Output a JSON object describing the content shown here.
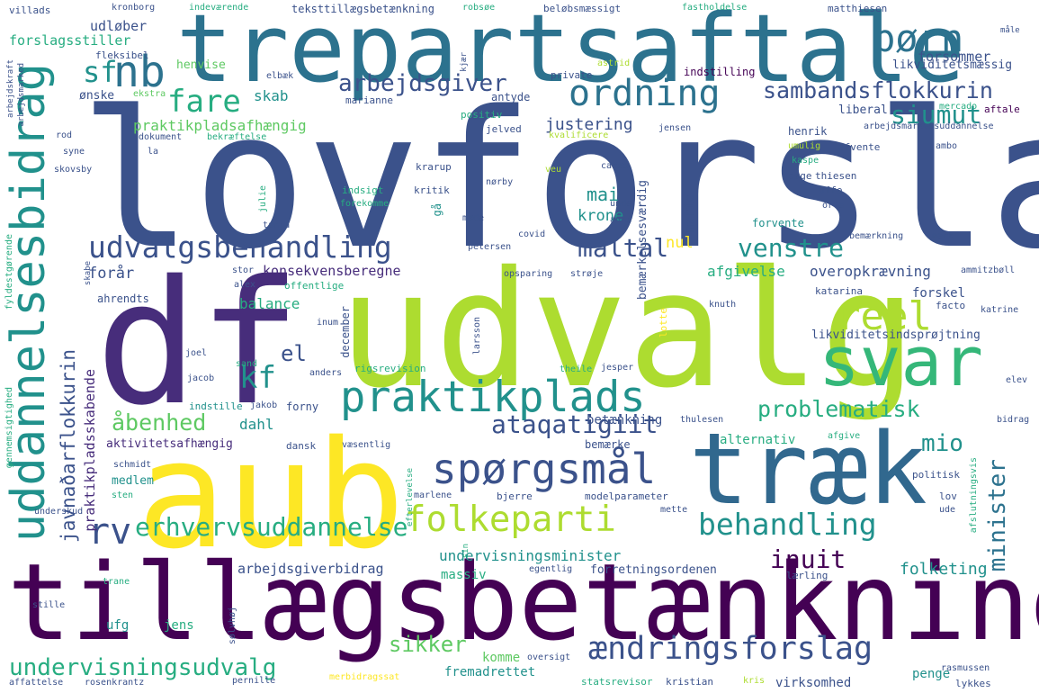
{
  "palette": {
    "navy": "#3b528b",
    "purple": "#472d7b",
    "deep": "#440154",
    "teal": "#21918c",
    "blue_teal": "#2c728e",
    "green": "#27ad81",
    "light_green": "#5ec962",
    "lime": "#addc30",
    "yellow": "#fde725"
  },
  "words": [
    {
      "id": "lovforslag",
      "text": "lovforslag",
      "color": "#3b528b"
    },
    {
      "id": "trepartsaftale",
      "text": "trepartsaftale",
      "color": "#2c728e"
    },
    {
      "id": "df",
      "text": "df",
      "color": "#472d7b"
    },
    {
      "id": "udvalg",
      "text": "udvalg",
      "color": "#addc30"
    },
    {
      "id": "aub",
      "text": "aub",
      "color": "#fde725"
    },
    {
      "id": "traek",
      "text": "træk",
      "color": "#31688e"
    },
    {
      "id": "tillaegsbetaenkning",
      "text": "tillægsbetænkning",
      "color": "#440154"
    },
    {
      "id": "svar",
      "text": "svar",
      "color": "#35b779"
    },
    {
      "id": "praktikplads",
      "text": "praktikplads",
      "color": "#21918c"
    },
    {
      "id": "uddannelsesbidrag",
      "text": "uddannelsesbidrag",
      "color": "#21918c"
    },
    {
      "id": "udvalgsbehandling",
      "text": "udvalgsbehandling",
      "color": "#3b528b"
    },
    {
      "id": "spoergsmaal",
      "text": "spørgsmål",
      "color": "#3b528b"
    },
    {
      "id": "folkeparti",
      "text": "folkeparti",
      "color": "#addc30"
    },
    {
      "id": "behandling",
      "text": "behandling",
      "color": "#21918c"
    },
    {
      "id": "aendringsforslag",
      "text": "ændringsforslag",
      "color": "#3b528b"
    },
    {
      "id": "undervisningsudvalg",
      "text": "undervisningsudvalg",
      "color": "#27ad81"
    },
    {
      "id": "ordning",
      "text": "ordning",
      "color": "#2c728e"
    },
    {
      "id": "boern",
      "text": "børn",
      "color": "#2c728e"
    },
    {
      "id": "nb",
      "text": "nb",
      "color": "#2c728e"
    },
    {
      "id": "sf",
      "text": "sf",
      "color": "#21918c"
    },
    {
      "id": "fare",
      "text": "fare",
      "color": "#27ad81"
    },
    {
      "id": "arbejdsgiver",
      "text": "arbejdsgiver",
      "color": "#3b528b"
    },
    {
      "id": "sambandsflokkurin",
      "text": "sambandsflokkurin",
      "color": "#3b528b"
    },
    {
      "id": "siumut",
      "text": "siumut",
      "color": "#21918c"
    },
    {
      "id": "reel",
      "text": "reel",
      "color": "#addc30"
    },
    {
      "id": "venstre",
      "text": "venstre",
      "color": "#21918c"
    },
    {
      "id": "maaltal",
      "text": "måltal",
      "color": "#3b528b"
    },
    {
      "id": "kf",
      "text": "kf",
      "color": "#21918c"
    },
    {
      "id": "el",
      "text": "el",
      "color": "#3b528b"
    },
    {
      "id": "rv",
      "text": "rv",
      "color": "#3b528b"
    },
    {
      "id": "erhvervsuddannelse",
      "text": "erhvervsuddannelse",
      "color": "#27ad81"
    },
    {
      "id": "mio",
      "text": "mio",
      "color": "#21918c"
    },
    {
      "id": "problematisk",
      "text": "problematisk",
      "color": "#27ad81"
    },
    {
      "id": "ataqatigiit",
      "text": "ataqatigiit",
      "color": "#3b528b"
    },
    {
      "id": "aabenhed",
      "text": "åbenhed",
      "color": "#5ec962"
    },
    {
      "id": "sikker",
      "text": "sikker",
      "color": "#5ec962"
    },
    {
      "id": "inuit",
      "text": "inuit",
      "color": "#440154"
    },
    {
      "id": "minister",
      "text": "minister",
      "color": "#2c728e"
    },
    {
      "id": "folketing",
      "text": "folketing",
      "color": "#21918c"
    },
    {
      "id": "praktikpladsafhaengig",
      "text": "praktikpladsafhængig",
      "color": "#5ec962"
    },
    {
      "id": "justering",
      "text": "justering",
      "color": "#3b528b"
    },
    {
      "id": "mai",
      "text": "mai",
      "color": "#21918c"
    },
    {
      "id": "krone",
      "text": "krone",
      "color": "#21918c"
    },
    {
      "id": "nul",
      "text": "nul",
      "color": "#fde725"
    },
    {
      "id": "skab",
      "text": "skab",
      "color": "#21918c"
    },
    {
      "id": "forsommer",
      "text": "forsommer",
      "color": "#3b528b"
    },
    {
      "id": "javnadarflokkurin",
      "text": "javnaðarflokkurin",
      "color": "#3b528b"
    },
    {
      "id": "praktikpladsskabende",
      "text": "praktikpladsskabende",
      "color": "#472d7b"
    },
    {
      "id": "konsekvensberegne",
      "text": "konsekvensberegne",
      "color": "#472d7b"
    },
    {
      "id": "overopkraevning",
      "text": "overopkrævning",
      "color": "#3b528b"
    },
    {
      "id": "afgivelse",
      "text": "afgivelse",
      "color": "#27ad81"
    },
    {
      "id": "forskel",
      "text": "forskel",
      "color": "#3b528b"
    },
    {
      "id": "likviditetsindsproejtning",
      "text": "likviditetsindsprøjtning",
      "color": "#3b528b"
    },
    {
      "id": "balance",
      "text": "balance",
      "color": "#27ad81"
    },
    {
      "id": "foraar",
      "text": "forår",
      "color": "#3b528b"
    },
    {
      "id": "dahl",
      "text": "dahl",
      "color": "#21918c"
    },
    {
      "id": "betaenkning",
      "text": "betænkning",
      "color": "#3b528b"
    },
    {
      "id": "alternativ",
      "text": "alternativ",
      "color": "#27ad81"
    },
    {
      "id": "aktivitetsafhaengig",
      "text": "aktivitetsafhængig",
      "color": "#472d7b"
    },
    {
      "id": "arbejdsgiverbidrag",
      "text": "arbejdsgiverbidrag",
      "color": "#3b528b"
    },
    {
      "id": "undervisningsminister",
      "text": "undervisningsminister",
      "color": "#21918c"
    },
    {
      "id": "massiv",
      "text": "massiv",
      "color": "#27ad81"
    },
    {
      "id": "forretningsordenen",
      "text": "forretningsordenen",
      "color": "#3b528b"
    },
    {
      "id": "fremadrettet",
      "text": "fremadrettet",
      "color": "#21918c"
    },
    {
      "id": "komme",
      "text": "komme",
      "color": "#5ec962"
    },
    {
      "id": "penge",
      "text": "penge",
      "color": "#21918c"
    },
    {
      "id": "virksomhed",
      "text": "virksomhed",
      "color": "#3b528b"
    },
    {
      "id": "medlem",
      "text": "medlem",
      "color": "#21918c"
    },
    {
      "id": "ufg",
      "text": "ufg",
      "color": "#21918c"
    },
    {
      "id": "jens",
      "text": "jens",
      "color": "#27ad81"
    },
    {
      "id": "udloeber",
      "text": "udløber",
      "color": "#3b528b"
    },
    {
      "id": "forslagsstiller",
      "text": "forslagsstiller",
      "color": "#27ad81"
    },
    {
      "id": "fleksibel",
      "text": "fleksibel",
      "color": "#3b528b"
    },
    {
      "id": "henvise",
      "text": "henvise",
      "color": "#5ec962"
    },
    {
      "id": "oenske",
      "text": "ønske",
      "color": "#3b528b"
    },
    {
      "id": "ekstra",
      "text": "ekstra",
      "color": "#5ec962"
    },
    {
      "id": "marianne",
      "text": "marianne",
      "color": "#3b528b"
    },
    {
      "id": "antyde",
      "text": "antyde",
      "color": "#3b528b"
    },
    {
      "id": "positiv",
      "text": "positiv",
      "color": "#27ad81"
    },
    {
      "id": "jelved",
      "text": "jelved",
      "color": "#3b528b"
    },
    {
      "id": "kvalificere",
      "text": "kvalificere",
      "color": "#addc30"
    },
    {
      "id": "liberal",
      "text": "liberal",
      "color": "#3b528b"
    },
    {
      "id": "arbejdsmarkedsuddannelse",
      "text": "arbejdsmarkedsuddannelse",
      "color": "#3b528b"
    },
    {
      "id": "aftale",
      "text": "aftale",
      "color": "#440154"
    },
    {
      "id": "mercado",
      "text": "mercado",
      "color": "#27ad81"
    },
    {
      "id": "likviditetsmaessig",
      "text": "likviditetsmæssig",
      "color": "#3b528b"
    },
    {
      "id": "indstilling",
      "text": "indstilling",
      "color": "#440154"
    },
    {
      "id": "private",
      "text": "private",
      "color": "#3b528b"
    },
    {
      "id": "astrid",
      "text": "astrid",
      "color": "#addc30"
    },
    {
      "id": "villads",
      "text": "villads",
      "color": "#3b528b"
    },
    {
      "id": "kronborg",
      "text": "kronborg",
      "color": "#3b528b"
    },
    {
      "id": "indevaerende",
      "text": "indeværende",
      "color": "#27ad81"
    },
    {
      "id": "teksttillaegsbetaenkning",
      "text": "teksttillægsbetænkning",
      "color": "#3b528b"
    },
    {
      "id": "robsoee",
      "text": "robsøe",
      "color": "#27ad81"
    },
    {
      "id": "beloebsmaessigt",
      "text": "beløbsmæssigt",
      "color": "#3b528b"
    },
    {
      "id": "fastholdelse",
      "text": "fastholdelse",
      "color": "#27ad81"
    },
    {
      "id": "matthiesen",
      "text": "matthiesen",
      "color": "#3b528b"
    },
    {
      "id": "maale",
      "text": "måle",
      "color": "#3b528b"
    },
    {
      "id": "elbaek",
      "text": "elbæk",
      "color": "#3b528b"
    },
    {
      "id": "rod",
      "text": "rod",
      "color": "#3b528b"
    },
    {
      "id": "syne",
      "text": "syne",
      "color": "#3b528b"
    },
    {
      "id": "skovsby",
      "text": "skovsby",
      "color": "#3b528b"
    },
    {
      "id": "dokument",
      "text": "dokument",
      "color": "#3b528b"
    },
    {
      "id": "bekraeftelse",
      "text": "bekræftelse",
      "color": "#27ad81"
    },
    {
      "id": "la",
      "text": "la",
      "color": "#3b528b"
    },
    {
      "id": "henrik",
      "text": "henrik",
      "color": "#3b528b"
    },
    {
      "id": "umulig",
      "text": "umulig",
      "color": "#addc30"
    },
    {
      "id": "kaspe",
      "text": "kaspe",
      "color": "#27ad81"
    },
    {
      "id": "afvente",
      "text": "afvente",
      "color": "#3b528b"
    },
    {
      "id": "ambo",
      "text": "ambo",
      "color": "#3b528b"
    },
    {
      "id": "jensen",
      "text": "jensen",
      "color": "#3b528b"
    },
    {
      "id": "kjaer",
      "text": "kjær",
      "color": "#3b528b"
    },
    {
      "id": "krarup",
      "text": "krarup",
      "color": "#3b528b"
    },
    {
      "id": "veu",
      "text": "veu",
      "color": "#addc30"
    },
    {
      "id": "caroee",
      "text": "carøe",
      "color": "#3b528b"
    },
    {
      "id": "soege",
      "text": "søge",
      "color": "#3b528b"
    },
    {
      "id": "thiesen",
      "text": "thiesen",
      "color": "#3b528b"
    },
    {
      "id": "uffe",
      "text": "uffe",
      "color": "#3b528b"
    },
    {
      "id": "orla",
      "text": "orla",
      "color": "#3b528b"
    },
    {
      "id": "noerby",
      "text": "nørby",
      "color": "#3b528b"
    },
    {
      "id": "unde",
      "text": "unde",
      "color": "#3b528b"
    },
    {
      "id": "kritik",
      "text": "kritik",
      "color": "#3b528b"
    },
    {
      "id": "indsigt",
      "text": "indsigt",
      "color": "#27ad81"
    },
    {
      "id": "forekomme",
      "text": "forekomme",
      "color": "#27ad81"
    },
    {
      "id": "moede",
      "text": "møde",
      "color": "#3b528b"
    },
    {
      "id": "anni",
      "text": "anni",
      "color": "#3b528b"
    },
    {
      "id": "julie",
      "text": "julie",
      "color": "#27ad81"
    },
    {
      "id": "tanja",
      "text": "tanja",
      "color": "#3b528b"
    },
    {
      "id": "gaa",
      "text": "gå",
      "color": "#21918c"
    },
    {
      "id": "petersen",
      "text": "petersen",
      "color": "#3b528b"
    },
    {
      "id": "covid",
      "text": "covid",
      "color": "#3b528b"
    },
    {
      "id": "forvente",
      "text": "forvente",
      "color": "#21918c"
    },
    {
      "id": "bemaerkning",
      "text": "bemærkning",
      "color": "#3b528b"
    },
    {
      "id": "mark",
      "text": "mark",
      "color": "#3b528b"
    },
    {
      "id": "stor",
      "text": "stor",
      "color": "#3b528b"
    },
    {
      "id": "alex",
      "text": "alex",
      "color": "#3b528b"
    },
    {
      "id": "offentlige",
      "text": "offentlige",
      "color": "#27ad81"
    },
    {
      "id": "opsparing",
      "text": "opsparing",
      "color": "#3b528b"
    },
    {
      "id": "stroeje",
      "text": "strøje",
      "color": "#3b528b"
    },
    {
      "id": "bemaerkelsesvaerdig",
      "text": "bemærkelsesværdig",
      "color": "#3b528b"
    },
    {
      "id": "marie",
      "text": "marie",
      "color": "#3b528b"
    },
    {
      "id": "katarina",
      "text": "katarina",
      "color": "#3b528b"
    },
    {
      "id": "ammitzboell",
      "text": "ammitzbøll",
      "color": "#3b528b"
    },
    {
      "id": "knuth",
      "text": "knuth",
      "color": "#3b528b"
    },
    {
      "id": "facto",
      "text": "facto",
      "color": "#3b528b"
    },
    {
      "id": "katrine",
      "text": "katrine",
      "color": "#3b528b"
    },
    {
      "id": "ahrendts",
      "text": "ahrendts",
      "color": "#3b528b"
    },
    {
      "id": "inum",
      "text": "inum",
      "color": "#3b528b"
    },
    {
      "id": "december",
      "text": "december",
      "color": "#3b528b"
    },
    {
      "id": "larsson",
      "text": "larsson",
      "color": "#3b528b"
    },
    {
      "id": "lotte",
      "text": "lotte",
      "color": "#fde725"
    },
    {
      "id": "joel",
      "text": "joel",
      "color": "#3b528b"
    },
    {
      "id": "sand",
      "text": "sand",
      "color": "#27ad81"
    },
    {
      "id": "jacob",
      "text": "jacob",
      "color": "#3b528b"
    },
    {
      "id": "anders",
      "text": "anders",
      "color": "#3b528b"
    },
    {
      "id": "rigsrevision",
      "text": "rigsrevision",
      "color": "#27ad81"
    },
    {
      "id": "theile",
      "text": "theile",
      "color": "#27ad81"
    },
    {
      "id": "jesper",
      "text": "jesper",
      "color": "#3b528b"
    },
    {
      "id": "elev",
      "text": "elev",
      "color": "#3b528b"
    },
    {
      "id": "indstille",
      "text": "indstille",
      "color": "#21918c"
    },
    {
      "id": "jakob",
      "text": "jakob",
      "color": "#3b528b"
    },
    {
      "id": "forny",
      "text": "forny",
      "color": "#3b528b"
    },
    {
      "id": "thulesen",
      "text": "thulesen",
      "color": "#3b528b"
    },
    {
      "id": "bidrag",
      "text": "bidrag",
      "color": "#3b528b"
    },
    {
      "id": "dansk",
      "text": "dansk",
      "color": "#3b528b"
    },
    {
      "id": "vaesentlig",
      "text": "væsentlig",
      "color": "#3b528b"
    },
    {
      "id": "bemaerke",
      "text": "bemærke",
      "color": "#3b528b"
    },
    {
      "id": "afgive",
      "text": "afgive",
      "color": "#27ad81"
    },
    {
      "id": "schmidt",
      "text": "schmidt",
      "color": "#3b528b"
    },
    {
      "id": "politisk",
      "text": "politisk",
      "color": "#3b528b"
    },
    {
      "id": "sten",
      "text": "sten",
      "color": "#27ad81"
    },
    {
      "id": "marlene",
      "text": "marlene",
      "color": "#3b528b"
    },
    {
      "id": "bjerre",
      "text": "bjerre",
      "color": "#3b528b"
    },
    {
      "id": "modelparameter",
      "text": "modelparameter",
      "color": "#3b528b"
    },
    {
      "id": "lov",
      "text": "lov",
      "color": "#3b528b"
    },
    {
      "id": "ude",
      "text": "ude",
      "color": "#3b528b"
    },
    {
      "id": "underskud",
      "text": "underskud",
      "color": "#3b528b"
    },
    {
      "id": "mette",
      "text": "mette",
      "color": "#3b528b"
    },
    {
      "id": "trane",
      "text": "trane",
      "color": "#27ad81"
    },
    {
      "id": "egentlig",
      "text": "egentlig",
      "color": "#3b528b"
    },
    {
      "id": "laerling",
      "text": "lærling",
      "color": "#3b528b"
    },
    {
      "id": "stille",
      "text": "stille",
      "color": "#3b528b"
    },
    {
      "id": "oversigt",
      "text": "oversigt",
      "color": "#3b528b"
    },
    {
      "id": "merbidragssat",
      "text": "merbidragssat",
      "color": "#fde725"
    },
    {
      "id": "statsrevisor",
      "text": "statsrevisor",
      "color": "#27ad81"
    },
    {
      "id": "kristian",
      "text": "kristian",
      "color": "#3b528b"
    },
    {
      "id": "kris",
      "text": "kris",
      "color": "#addc30"
    },
    {
      "id": "rasmussen",
      "text": "rasmussen",
      "color": "#3b528b"
    },
    {
      "id": "lykkes",
      "text": "lykkes",
      "color": "#3b528b"
    },
    {
      "id": "affattelse",
      "text": "affattelse",
      "color": "#3b528b"
    },
    {
      "id": "rosenkrantz",
      "text": "rosenkrantz",
      "color": "#3b528b"
    },
    {
      "id": "pernille",
      "text": "pernille",
      "color": "#3b528b"
    },
    {
      "id": "arbejdskraft",
      "text": "arbejdskraft",
      "color": "#3b528b"
    },
    {
      "id": "arbejdsmarked",
      "text": "arbejdsmarked",
      "color": "#3b528b"
    },
    {
      "id": "fyldestgoerende",
      "text": "fyldestgørende",
      "color": "#27ad81"
    },
    {
      "id": "gennemsigtighed",
      "text": "gennemsigtighed",
      "color": "#27ad81"
    },
    {
      "id": "skabe",
      "text": "skabe",
      "color": "#3b528b"
    },
    {
      "id": "efterlevelse",
      "text": "efterlevelse",
      "color": "#27ad81"
    },
    {
      "id": "afslutningsvis",
      "text": "afslutningsvis",
      "color": "#27ad81"
    },
    {
      "id": "soelvhoej",
      "text": "sølvhøj",
      "color": "#3b528b"
    },
    {
      "id": "sin",
      "text": "sin",
      "color": "#27ad81"
    }
  ]
}
